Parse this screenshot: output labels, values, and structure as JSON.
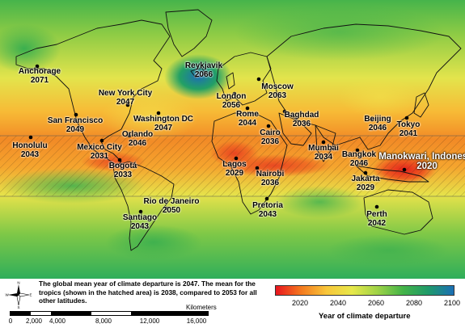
{
  "cities": [
    {
      "name": "Anchorage",
      "year": "2071"
    },
    {
      "name": "Reykjavik",
      "year": "2066"
    },
    {
      "name": "Moscow",
      "year": "2063"
    },
    {
      "name": "London",
      "year": "2056"
    },
    {
      "name": "New York City",
      "year": "2047"
    },
    {
      "name": "San Francisco",
      "year": "2049"
    },
    {
      "name": "Washington DC",
      "year": "2047"
    },
    {
      "name": "Rome",
      "year": "2044"
    },
    {
      "name": "Baghdad",
      "year": "2036"
    },
    {
      "name": "Beijing",
      "year": "2046"
    },
    {
      "name": "Tokyo",
      "year": "2041"
    },
    {
      "name": "Honolulu",
      "year": "2043"
    },
    {
      "name": "Orlando",
      "year": "2046"
    },
    {
      "name": "Cairo",
      "year": "2036"
    },
    {
      "name": "Mexico City",
      "year": "2031"
    },
    {
      "name": "Mumbai",
      "year": "2034"
    },
    {
      "name": "Bangkok",
      "year": "2046"
    },
    {
      "name": "Manokwari, Indonesia",
      "year": "2020"
    },
    {
      "name": "Lagos",
      "year": "2029"
    },
    {
      "name": "Bogotá",
      "year": "2033"
    },
    {
      "name": "Nairobi",
      "year": "2036"
    },
    {
      "name": "Jakarta",
      "year": "2029"
    },
    {
      "name": "Rio de Janeiro",
      "year": "2050"
    },
    {
      "name": "Pretoria",
      "year": "2043"
    },
    {
      "name": "Santiago",
      "year": "2043"
    },
    {
      "name": "Perth",
      "year": "2042"
    }
  ],
  "caption": "The global mean year of climate departure is 2047. The mean for the tropics (shown in the hatched area) is 2038, compared to 2053 for all other latitudes.",
  "compass": {
    "icon": "compass-rose-icon",
    "labels": [
      "N",
      "S",
      "E",
      "W"
    ]
  },
  "scale": {
    "unit": "Kilometers",
    "ticks": [
      "0",
      "2,000",
      "4,000",
      "8,000",
      "12,000",
      "16,000"
    ]
  },
  "legend": {
    "title": "Year of climate departure",
    "ticks": [
      "2020",
      "2040",
      "2060",
      "2080",
      "2100"
    ],
    "colors": [
      "#e8141e",
      "#f47a1f",
      "#f8c63a",
      "#e7e84a",
      "#9fd347",
      "#44b448",
      "#1f9a6a",
      "#1b6fb5"
    ]
  },
  "colors": {
    "polar_green": "#3fb24d",
    "tropics_orange": "#f07a22",
    "midlat_yellow": "#eddc4e",
    "deep_blue": "#1a6fb5"
  }
}
